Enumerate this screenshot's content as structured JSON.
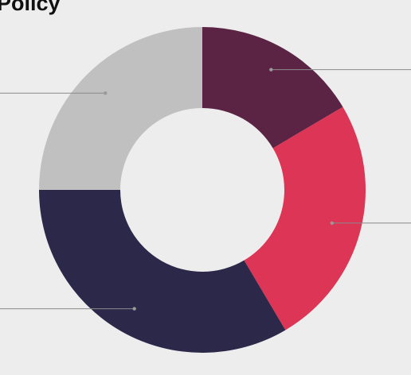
{
  "title": "Policy",
  "chart_data": {
    "type": "pie",
    "donut": true,
    "title": "Policy",
    "slices": [
      {
        "label": "",
        "value": 16.5,
        "color": "#5c2444"
      },
      {
        "label": "",
        "value": 25.0,
        "color": "#dc3555"
      },
      {
        "label": "",
        "value": 33.5,
        "color": "#2c2849"
      },
      {
        "label": "",
        "value": 25.0,
        "color": "#c1c0c0"
      }
    ],
    "legend": "none",
    "leader_lines": true,
    "background": "#ededed"
  }
}
